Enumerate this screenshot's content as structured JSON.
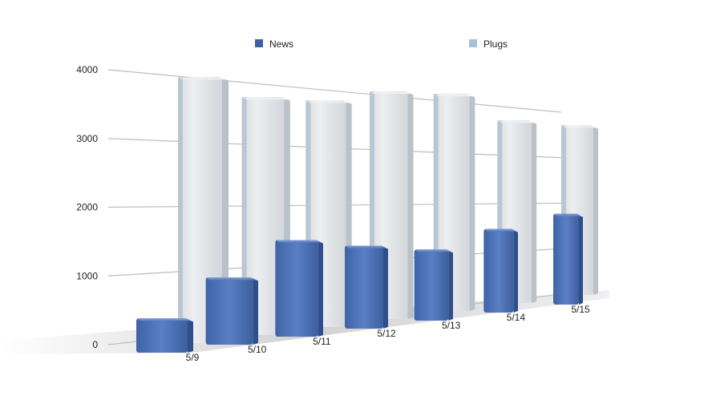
{
  "chart_data": {
    "type": "bar",
    "categories": [
      "5/9",
      "5/10",
      "5/11",
      "5/12",
      "5/13",
      "5/14",
      "5/15"
    ],
    "series": [
      {
        "name": "News",
        "values": [
          500,
          1000,
          1470,
          1290,
          1130,
          1360,
          1510
        ],
        "color": "#4a70b3"
      },
      {
        "name": "Plugs",
        "values": [
          3880,
          3550,
          3460,
          3560,
          3480,
          3000,
          2860
        ],
        "color": "#c9cdd2"
      }
    ],
    "ylim": [
      0,
      4000
    ],
    "yticks": [
      0,
      1000,
      2000,
      3000,
      4000
    ],
    "grid": true,
    "legend_position": "top",
    "title": "",
    "xlabel": "",
    "ylabel": ""
  }
}
